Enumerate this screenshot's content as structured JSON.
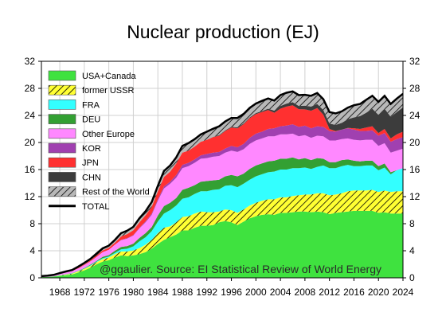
{
  "chart_data": {
    "type": "area",
    "title": "Nuclear production (EJ)",
    "annotation": "@ggaulier. Source: EI Statistical Review of World Energy",
    "xlabel": "",
    "ylabel": "",
    "xlim": [
      1965,
      2024
    ],
    "ylim": [
      0,
      32
    ],
    "x_ticks": [
      1968,
      1972,
      1976,
      1980,
      1984,
      1988,
      1992,
      1996,
      2000,
      2004,
      2008,
      2012,
      2016,
      2020,
      2024
    ],
    "y_ticks": [
      0,
      4,
      8,
      12,
      16,
      20,
      24,
      28,
      32
    ],
    "grid": true,
    "legend_position": "top-left",
    "x": [
      1965,
      1966,
      1967,
      1968,
      1969,
      1970,
      1971,
      1972,
      1973,
      1974,
      1975,
      1976,
      1977,
      1978,
      1979,
      1980,
      1981,
      1982,
      1983,
      1984,
      1985,
      1986,
      1987,
      1988,
      1989,
      1990,
      1991,
      1992,
      1993,
      1994,
      1995,
      1996,
      1997,
      1998,
      1999,
      2000,
      2001,
      2002,
      2003,
      2004,
      2005,
      2006,
      2007,
      2008,
      2009,
      2010,
      2011,
      2012,
      2013,
      2014,
      2015,
      2016,
      2017,
      2018,
      2019,
      2020,
      2021,
      2022,
      2023,
      2024
    ],
    "series": [
      {
        "name": "USA+Canada",
        "color": "#3fe23f",
        "pattern": "solid",
        "values": [
          0.1,
          0.15,
          0.2,
          0.3,
          0.4,
          0.5,
          0.8,
          1.1,
          1.5,
          2.0,
          2.4,
          2.6,
          3.0,
          3.3,
          3.2,
          3.3,
          3.5,
          3.8,
          4.3,
          5.0,
          5.6,
          6.0,
          6.4,
          7.0,
          7.0,
          7.4,
          7.7,
          7.7,
          7.8,
          8.2,
          8.4,
          8.2,
          7.8,
          8.3,
          8.8,
          9.1,
          9.3,
          9.4,
          9.3,
          9.6,
          9.6,
          9.7,
          9.8,
          9.8,
          9.7,
          9.8,
          9.7,
          9.4,
          9.6,
          9.7,
          9.8,
          9.9,
          9.9,
          9.9,
          9.9,
          9.6,
          9.7,
          9.5,
          9.5,
          9.5
        ]
      },
      {
        "name": "former USSR",
        "color": "#ffff33",
        "pattern": "hatch",
        "values": [
          0.0,
          0.0,
          0.0,
          0.05,
          0.08,
          0.1,
          0.15,
          0.2,
          0.25,
          0.3,
          0.35,
          0.4,
          0.5,
          0.6,
          0.7,
          0.75,
          0.9,
          1.1,
          1.3,
          1.6,
          1.8,
          1.6,
          1.8,
          2.0,
          2.1,
          2.1,
          2.1,
          2.0,
          1.9,
          1.6,
          1.7,
          1.8,
          1.8,
          1.8,
          1.9,
          2.0,
          2.1,
          2.2,
          2.3,
          2.3,
          2.3,
          2.4,
          2.4,
          2.5,
          2.6,
          2.7,
          2.8,
          2.8,
          2.7,
          2.8,
          3.0,
          3.0,
          3.0,
          3.0,
          3.1,
          3.1,
          3.2,
          3.2,
          3.3,
          3.3
        ]
      },
      {
        "name": "FRA",
        "color": "#33ffff",
        "pattern": "solid",
        "values": [
          0.0,
          0.0,
          0.0,
          0.03,
          0.04,
          0.05,
          0.05,
          0.07,
          0.1,
          0.1,
          0.15,
          0.15,
          0.2,
          0.3,
          0.4,
          0.6,
          1.0,
          1.1,
          1.3,
          1.7,
          2.1,
          2.4,
          2.5,
          2.7,
          2.8,
          2.9,
          3.0,
          3.1,
          3.3,
          3.3,
          3.5,
          3.7,
          3.8,
          3.8,
          3.8,
          3.9,
          3.9,
          4.0,
          4.1,
          4.1,
          4.1,
          4.1,
          4.0,
          4.0,
          3.8,
          3.9,
          4.1,
          4.0,
          3.9,
          4.0,
          3.9,
          3.6,
          3.6,
          3.7,
          3.6,
          3.2,
          3.4,
          2.6,
          3.1,
          3.4
        ]
      },
      {
        "name": "DEU",
        "color": "#33a033",
        "pattern": "solid",
        "values": [
          0.0,
          0.0,
          0.0,
          0.02,
          0.02,
          0.05,
          0.05,
          0.08,
          0.1,
          0.1,
          0.2,
          0.2,
          0.3,
          0.35,
          0.4,
          0.4,
          0.5,
          0.6,
          0.6,
          0.9,
          1.1,
          1.1,
          1.1,
          1.3,
          1.4,
          1.3,
          1.4,
          1.5,
          1.4,
          1.4,
          1.4,
          1.5,
          1.6,
          1.5,
          1.6,
          1.6,
          1.6,
          1.6,
          1.6,
          1.6,
          1.6,
          1.6,
          1.3,
          1.4,
          1.3,
          1.3,
          1.0,
          0.9,
          0.9,
          0.9,
          0.8,
          0.8,
          0.7,
          0.7,
          0.7,
          0.6,
          0.6,
          0.3,
          0.0,
          0.0
        ]
      },
      {
        "name": "Other Europe",
        "color": "#ff88ff",
        "pattern": "solid",
        "values": [
          0.1,
          0.12,
          0.15,
          0.2,
          0.25,
          0.3,
          0.35,
          0.45,
          0.5,
          0.6,
          0.7,
          0.8,
          0.9,
          1.0,
          1.1,
          1.2,
          1.4,
          1.6,
          1.8,
          2.2,
          2.6,
          2.8,
          3.0,
          3.2,
          3.2,
          3.3,
          3.4,
          3.4,
          3.5,
          3.5,
          3.5,
          3.6,
          3.6,
          3.6,
          3.7,
          3.7,
          3.7,
          3.7,
          3.6,
          3.6,
          3.6,
          3.5,
          3.4,
          3.4,
          3.3,
          3.3,
          3.3,
          3.2,
          3.2,
          3.1,
          3.1,
          3.1,
          3.1,
          3.1,
          3.1,
          3.0,
          3.0,
          2.9,
          2.9,
          2.9
        ]
      },
      {
        "name": "KOR",
        "color": "#a040b0",
        "pattern": "solid",
        "values": [
          0.0,
          0.0,
          0.0,
          0.0,
          0.0,
          0.0,
          0.0,
          0.0,
          0.0,
          0.0,
          0.0,
          0.0,
          0.0,
          0.05,
          0.07,
          0.08,
          0.1,
          0.15,
          0.2,
          0.2,
          0.3,
          0.3,
          0.4,
          0.5,
          0.5,
          0.5,
          0.5,
          0.6,
          0.6,
          0.6,
          0.6,
          0.7,
          0.7,
          0.8,
          0.9,
          1.0,
          1.0,
          1.1,
          1.2,
          1.2,
          1.3,
          1.4,
          1.4,
          1.4,
          1.4,
          1.4,
          1.4,
          1.4,
          1.3,
          1.4,
          1.5,
          1.5,
          1.4,
          1.3,
          1.4,
          1.5,
          1.5,
          1.6,
          1.7,
          1.7
        ]
      },
      {
        "name": "JPN",
        "color": "#ff3030",
        "pattern": "solid",
        "values": [
          0.0,
          0.0,
          0.0,
          0.0,
          0.05,
          0.05,
          0.1,
          0.1,
          0.15,
          0.2,
          0.25,
          0.3,
          0.3,
          0.5,
          0.6,
          0.7,
          0.8,
          0.9,
          1.0,
          1.2,
          1.4,
          1.5,
          1.7,
          1.8,
          1.8,
          1.9,
          2.0,
          2.1,
          2.3,
          2.4,
          2.6,
          2.7,
          2.8,
          2.9,
          2.9,
          2.9,
          2.9,
          2.8,
          2.3,
          2.6,
          2.8,
          2.8,
          2.6,
          2.4,
          2.6,
          2.7,
          1.8,
          0.3,
          0.1,
          0.0,
          0.05,
          0.2,
          0.3,
          0.5,
          0.6,
          0.4,
          0.6,
          0.5,
          0.7,
          0.8
        ]
      },
      {
        "name": "CHN",
        "color": "#3c3c3c",
        "pattern": "solid",
        "values": [
          0.0,
          0.0,
          0.0,
          0.0,
          0.0,
          0.0,
          0.0,
          0.0,
          0.0,
          0.0,
          0.0,
          0.0,
          0.0,
          0.0,
          0.0,
          0.0,
          0.0,
          0.0,
          0.0,
          0.0,
          0.0,
          0.0,
          0.0,
          0.0,
          0.0,
          0.0,
          0.0,
          0.0,
          0.02,
          0.1,
          0.1,
          0.12,
          0.12,
          0.12,
          0.12,
          0.15,
          0.15,
          0.2,
          0.3,
          0.4,
          0.45,
          0.45,
          0.5,
          0.55,
          0.6,
          0.6,
          0.7,
          0.8,
          0.9,
          1.0,
          1.3,
          1.6,
          1.9,
          2.2,
          2.6,
          2.7,
          3.0,
          3.2,
          3.3,
          3.6
        ]
      },
      {
        "name": "Rest of the World",
        "color": "#b8b8b8",
        "pattern": "hatch",
        "values": [
          0.05,
          0.05,
          0.08,
          0.1,
          0.1,
          0.1,
          0.15,
          0.2,
          0.2,
          0.3,
          0.3,
          0.3,
          0.4,
          0.5,
          0.5,
          0.5,
          0.6,
          0.6,
          0.7,
          0.8,
          0.9,
          0.9,
          0.9,
          1.0,
          1.1,
          1.1,
          1.1,
          1.2,
          1.2,
          1.3,
          1.3,
          1.3,
          1.4,
          1.4,
          1.4,
          1.4,
          1.5,
          1.5,
          1.5,
          1.6,
          1.6,
          1.6,
          1.6,
          1.6,
          1.6,
          1.6,
          1.6,
          1.7,
          1.7,
          1.7,
          1.7,
          1.8,
          1.8,
          1.9,
          1.9,
          1.9,
          1.9,
          1.9,
          2.0,
          2.0
        ]
      }
    ],
    "total": {
      "name": "TOTAL",
      "color": "#000000"
    }
  }
}
